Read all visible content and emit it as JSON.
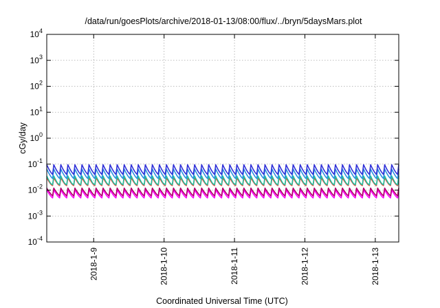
{
  "chart_data": {
    "type": "line",
    "title": "/data/run/goesPlots/archive/2018-01-13/08:00/flux/../bryn/5daysMars.plot",
    "xlabel": "Coordinated Universal Time (UTC)",
    "ylabel": "cGy/day",
    "y_scale": "log",
    "ylim": [
      0.0001,
      10000
    ],
    "y_ticks": [
      {
        "value": 0.0001,
        "mantissa": "10",
        "exponent": "-4"
      },
      {
        "value": 0.001,
        "mantissa": "10",
        "exponent": "-3"
      },
      {
        "value": 0.01,
        "mantissa": "10",
        "exponent": "-2"
      },
      {
        "value": 0.1,
        "mantissa": "10",
        "exponent": "-1"
      },
      {
        "value": 1,
        "mantissa": "10",
        "exponent": "0"
      },
      {
        "value": 10,
        "mantissa": "10",
        "exponent": "1"
      },
      {
        "value": 100,
        "mantissa": "10",
        "exponent": "2"
      },
      {
        "value": 1000,
        "mantissa": "10",
        "exponent": "3"
      },
      {
        "value": 10000,
        "mantissa": "10",
        "exponent": "4"
      }
    ],
    "xlim": [
      "2018-01-08 08:00",
      "2018-01-13 08:00"
    ],
    "x_ticks": [
      "2018-1-9",
      "2018-1-10",
      "2018-1-11",
      "2018-1-12",
      "2018-1-13"
    ],
    "grid": true,
    "legend": "none",
    "sampling": {
      "start": "2018-01-08 08:00",
      "step_hours": 2.4,
      "cycles": 50
    },
    "series": [
      {
        "color": "#ff00ff",
        "values": [
          0.01,
          0.0085,
          0.0072,
          0.0062,
          0.0055,
          0.005
        ]
      },
      {
        "color": "#b0006a",
        "values": [
          0.012,
          0.01,
          0.0087,
          0.0075,
          0.0066,
          0.006
        ]
      },
      {
        "color": "#ff3020",
        "values": [
          0.03,
          0.025,
          0.021,
          0.018,
          0.016,
          0.015
        ]
      },
      {
        "color": "#20c0a0",
        "values": [
          0.035,
          0.028,
          0.023,
          0.019,
          0.017,
          0.016
        ]
      },
      {
        "color": "#2a90e0",
        "values": [
          0.065,
          0.052,
          0.043,
          0.036,
          0.031,
          0.028
        ]
      },
      {
        "color": "#3030d8",
        "values": [
          0.095,
          0.076,
          0.062,
          0.052,
          0.045,
          0.04
        ]
      }
    ]
  }
}
